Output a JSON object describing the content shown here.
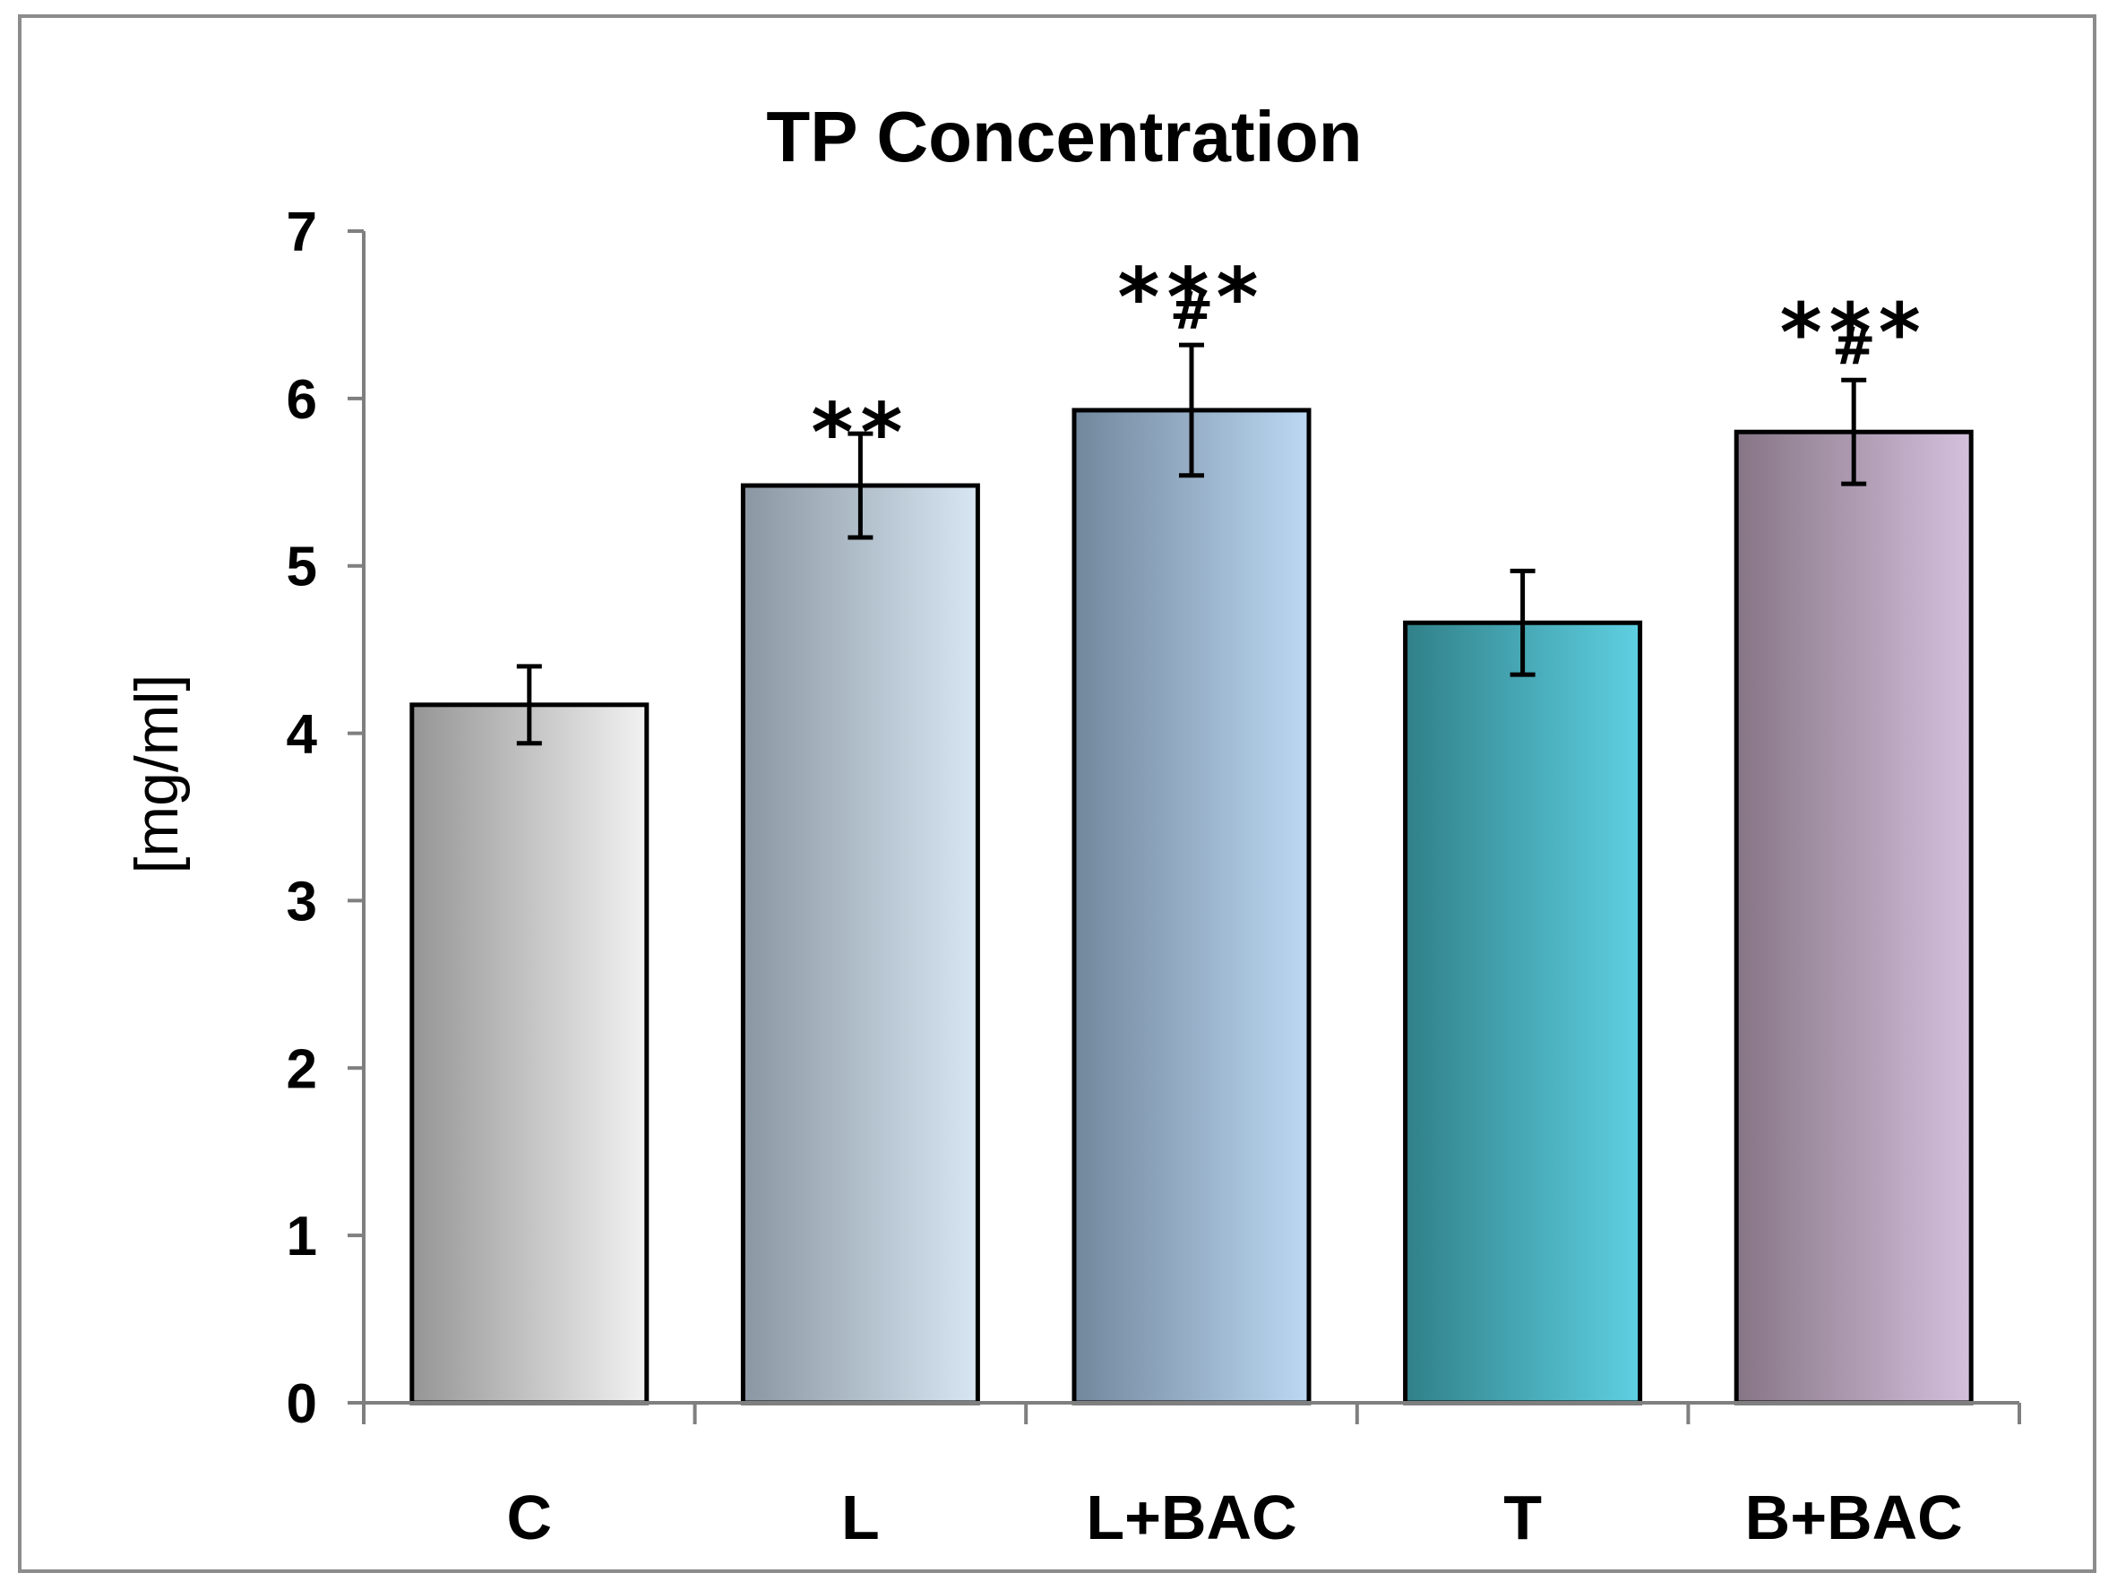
{
  "chart_data": {
    "type": "bar",
    "title": "TP Concentration",
    "xlabel": "",
    "ylabel": "[mg/ml]",
    "ylim": [
      0,
      7
    ],
    "yticks": [
      0,
      1,
      2,
      3,
      4,
      5,
      6,
      7
    ],
    "grid": false,
    "legend": "none",
    "categories": [
      "C",
      "L",
      "L+BAC",
      "T",
      "B+BAC"
    ],
    "values": [
      4.17,
      5.48,
      5.93,
      4.66,
      5.8
    ],
    "errors": [
      0.23,
      0.31,
      0.39,
      0.31,
      0.31
    ],
    "annotations": [
      {
        "stars": "",
        "hash": ""
      },
      {
        "stars": "**",
        "hash": ""
      },
      {
        "stars": "***",
        "hash": "#"
      },
      {
        "stars": "",
        "hash": ""
      },
      {
        "stars": "***",
        "hash": "#"
      }
    ],
    "colors": [
      {
        "dark": "#959595",
        "light": "#f2f2f2"
      },
      {
        "dark": "#8a97a3",
        "light": "#d8e6f3"
      },
      {
        "dark": "#71879c",
        "light": "#bcd8f3"
      },
      {
        "dark": "#308088",
        "light": "#5ed0e2"
      },
      {
        "dark": "#867585",
        "light": "#d4c0dd"
      }
    ],
    "frame_color": "#8c8c8c",
    "axis_color": "#7f7f7f"
  }
}
